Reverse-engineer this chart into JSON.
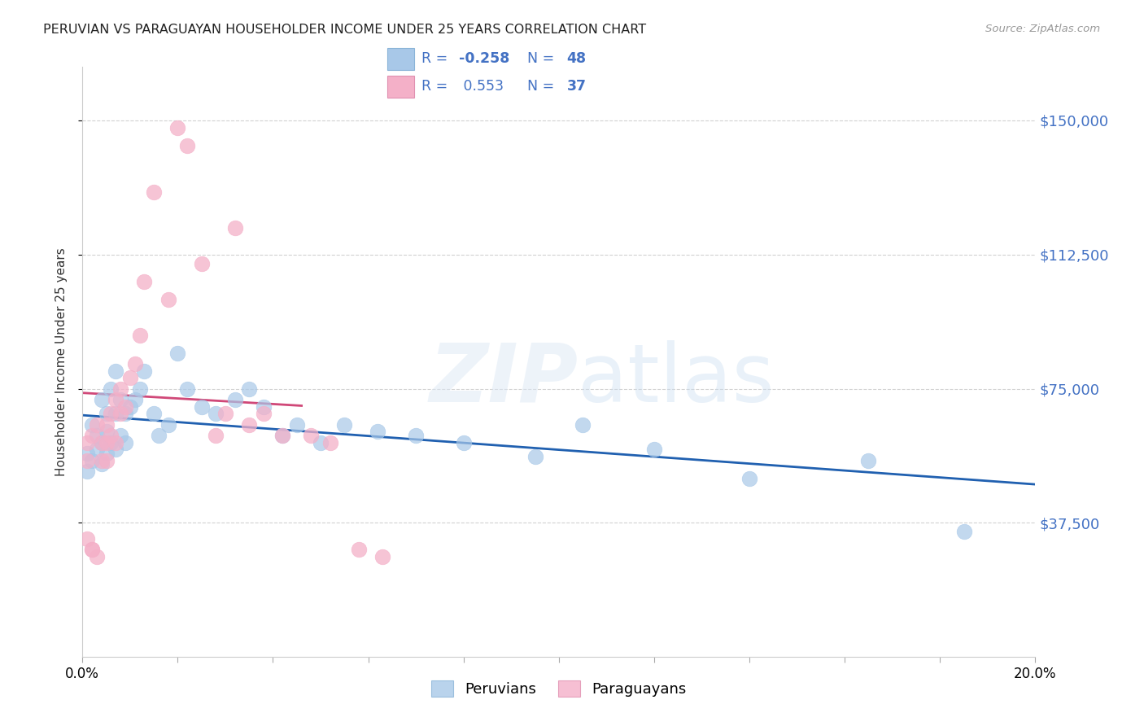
{
  "title": "PERUVIAN VS PARAGUAYAN HOUSEHOLDER INCOME UNDER 25 YEARS CORRELATION CHART",
  "source": "Source: ZipAtlas.com",
  "ylabel": "Householder Income Under 25 years",
  "watermark_zip": "ZIP",
  "watermark_atlas": "atlas",
  "ytick_vals": [
    37500,
    75000,
    112500,
    150000
  ],
  "ytick_labels": [
    "$37,500",
    "$75,000",
    "$112,500",
    "$150,000"
  ],
  "xlim": [
    0.0,
    0.2
  ],
  "ylim": [
    0,
    165000
  ],
  "blue_R": -0.258,
  "blue_N": 48,
  "pink_R": 0.553,
  "pink_N": 37,
  "blue_scatter_color": "#a8c8e8",
  "pink_scatter_color": "#f4b0c8",
  "blue_line_color": "#2060b0",
  "pink_line_color": "#d04878",
  "legend_text_color": "#4472c4",
  "ytick_color": "#4472c4",
  "legend_blue_label": "Peruvians",
  "legend_pink_label": "Paraguayans",
  "blue_scatter_x": [
    0.001,
    0.001,
    0.002,
    0.002,
    0.003,
    0.003,
    0.004,
    0.004,
    0.004,
    0.005,
    0.005,
    0.005,
    0.006,
    0.006,
    0.007,
    0.007,
    0.007,
    0.008,
    0.008,
    0.009,
    0.009,
    0.01,
    0.011,
    0.012,
    0.013,
    0.015,
    0.016,
    0.018,
    0.02,
    0.022,
    0.025,
    0.028,
    0.032,
    0.035,
    0.038,
    0.042,
    0.045,
    0.05,
    0.055,
    0.062,
    0.07,
    0.08,
    0.095,
    0.105,
    0.12,
    0.14,
    0.165,
    0.185
  ],
  "blue_scatter_y": [
    57000,
    52000,
    65000,
    55000,
    62000,
    58000,
    72000,
    60000,
    54000,
    68000,
    63000,
    57000,
    75000,
    60000,
    80000,
    68000,
    58000,
    72000,
    62000,
    68000,
    60000,
    70000,
    72000,
    75000,
    80000,
    68000,
    62000,
    65000,
    85000,
    75000,
    70000,
    68000,
    72000,
    75000,
    70000,
    62000,
    65000,
    60000,
    65000,
    63000,
    62000,
    60000,
    56000,
    65000,
    58000,
    50000,
    55000,
    35000
  ],
  "pink_scatter_x": [
    0.001,
    0.001,
    0.002,
    0.002,
    0.003,
    0.003,
    0.004,
    0.004,
    0.005,
    0.005,
    0.005,
    0.006,
    0.006,
    0.007,
    0.007,
    0.008,
    0.008,
    0.009,
    0.01,
    0.011,
    0.012,
    0.013,
    0.015,
    0.018,
    0.02,
    0.022,
    0.025,
    0.028,
    0.03,
    0.032,
    0.035,
    0.038,
    0.042,
    0.048,
    0.052,
    0.058,
    0.063
  ],
  "pink_scatter_y": [
    60000,
    55000,
    62000,
    30000,
    65000,
    28000,
    60000,
    55000,
    65000,
    60000,
    55000,
    68000,
    62000,
    72000,
    60000,
    75000,
    68000,
    70000,
    78000,
    82000,
    90000,
    105000,
    130000,
    100000,
    148000,
    143000,
    110000,
    62000,
    68000,
    120000,
    65000,
    68000,
    62000,
    62000,
    60000,
    30000,
    28000
  ],
  "pink_line_x_end": 0.046,
  "pink_scatter_lowx": [
    0.001,
    0.002
  ],
  "pink_scatter_lowy": [
    33000,
    30000
  ]
}
